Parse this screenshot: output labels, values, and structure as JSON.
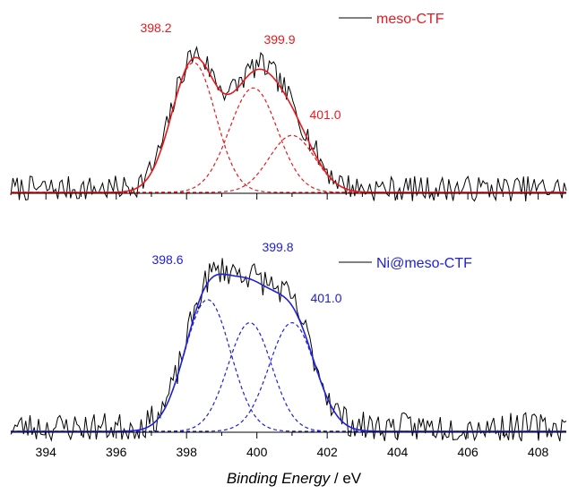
{
  "chart_data": {
    "type": "line",
    "xlabel_italic": "Binding Energy",
    "xlabel_unit": " / eV",
    "xlim": [
      393,
      408.8
    ],
    "xticks": [
      "394",
      "396",
      "398",
      "400",
      "402",
      "404",
      "406",
      "408"
    ],
    "grid": false,
    "legend_position": "top-right",
    "panels": [
      {
        "name": "meso-CTF",
        "legend": "meso-CTF",
        "color": "#e8191e",
        "fit_peaks": [
          {
            "label": "398.2",
            "center": 398.2,
            "height": 0.82,
            "sigma": 0.62
          },
          {
            "label": "399.9",
            "center": 399.9,
            "height": 0.66,
            "sigma": 0.68
          },
          {
            "label": "401.0",
            "center": 401.0,
            "height": 0.36,
            "sigma": 0.65
          }
        ],
        "noise_amplitude": 0.1,
        "seed": 7
      },
      {
        "name": "Ni@meso-CTF",
        "legend": "Ni@meso-CTF",
        "color": "#2020d8",
        "fit_peaks": [
          {
            "label": "398.6",
            "center": 398.6,
            "height": 0.8,
            "sigma": 0.65
          },
          {
            "label": "399.8",
            "center": 399.8,
            "height": 0.66,
            "sigma": 0.62
          },
          {
            "label": "401.0",
            "center": 401.0,
            "height": 0.66,
            "sigma": 0.65
          }
        ],
        "noise_amplitude": 0.11,
        "seed": 23
      }
    ]
  }
}
